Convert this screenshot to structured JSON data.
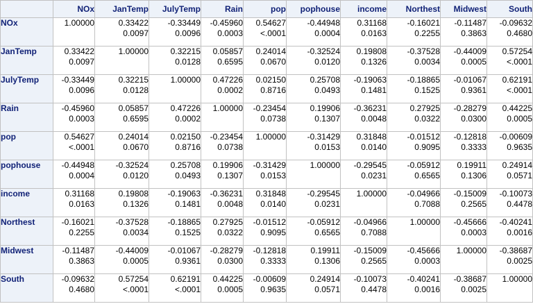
{
  "table": {
    "columns": [
      "NOx",
      "JanTemp",
      "JulyTemp",
      "Rain",
      "pop",
      "pophouse",
      "income",
      "Northest",
      "Midwest",
      "South"
    ],
    "rows": [
      {
        "label": "NOx",
        "cells": [
          [
            "1.00000",
            ""
          ],
          [
            "0.33422",
            "0.0097"
          ],
          [
            "-0.33449",
            "0.0096"
          ],
          [
            "-0.45960",
            "0.0003"
          ],
          [
            "0.54627",
            "<.0001"
          ],
          [
            "-0.44948",
            "0.0004"
          ],
          [
            "0.31168",
            "0.0163"
          ],
          [
            "-0.16021",
            "0.2255"
          ],
          [
            "-0.11487",
            "0.3863"
          ],
          [
            "-0.09632",
            "0.4680"
          ]
        ]
      },
      {
        "label": "JanTemp",
        "cells": [
          [
            "0.33422",
            "0.0097"
          ],
          [
            "1.00000",
            ""
          ],
          [
            "0.32215",
            "0.0128"
          ],
          [
            "0.05857",
            "0.6595"
          ],
          [
            "0.24014",
            "0.0670"
          ],
          [
            "-0.32524",
            "0.0120"
          ],
          [
            "0.19808",
            "0.1326"
          ],
          [
            "-0.37528",
            "0.0034"
          ],
          [
            "-0.44009",
            "0.0005"
          ],
          [
            "0.57254",
            "<.0001"
          ]
        ]
      },
      {
        "label": "JulyTemp",
        "cells": [
          [
            "-0.33449",
            "0.0096"
          ],
          [
            "0.32215",
            "0.0128"
          ],
          [
            "1.00000",
            ""
          ],
          [
            "0.47226",
            "0.0002"
          ],
          [
            "0.02150",
            "0.8716"
          ],
          [
            "0.25708",
            "0.0493"
          ],
          [
            "-0.19063",
            "0.1481"
          ],
          [
            "-0.18865",
            "0.1525"
          ],
          [
            "-0.01067",
            "0.9361"
          ],
          [
            "0.62191",
            "<.0001"
          ]
        ]
      },
      {
        "label": "Rain",
        "cells": [
          [
            "-0.45960",
            "0.0003"
          ],
          [
            "0.05857",
            "0.6595"
          ],
          [
            "0.47226",
            "0.0002"
          ],
          [
            "1.00000",
            ""
          ],
          [
            "-0.23454",
            "0.0738"
          ],
          [
            "0.19906",
            "0.1307"
          ],
          [
            "-0.36231",
            "0.0048"
          ],
          [
            "0.27925",
            "0.0322"
          ],
          [
            "-0.28279",
            "0.0300"
          ],
          [
            "0.44225",
            "0.0005"
          ]
        ]
      },
      {
        "label": "pop",
        "cells": [
          [
            "0.54627",
            "<.0001"
          ],
          [
            "0.24014",
            "0.0670"
          ],
          [
            "0.02150",
            "0.8716"
          ],
          [
            "-0.23454",
            "0.0738"
          ],
          [
            "1.00000",
            ""
          ],
          [
            "-0.31429",
            "0.0153"
          ],
          [
            "0.31848",
            "0.0140"
          ],
          [
            "-0.01512",
            "0.9095"
          ],
          [
            "-0.12818",
            "0.3333"
          ],
          [
            "-0.00609",
            "0.9635"
          ]
        ]
      },
      {
        "label": "pophouse",
        "cells": [
          [
            "-0.44948",
            "0.0004"
          ],
          [
            "-0.32524",
            "0.0120"
          ],
          [
            "0.25708",
            "0.0493"
          ],
          [
            "0.19906",
            "0.1307"
          ],
          [
            "-0.31429",
            "0.0153"
          ],
          [
            "1.00000",
            ""
          ],
          [
            "-0.29545",
            "0.0231"
          ],
          [
            "-0.05912",
            "0.6565"
          ],
          [
            "0.19911",
            "0.1306"
          ],
          [
            "0.24914",
            "0.0571"
          ]
        ]
      },
      {
        "label": "income",
        "cells": [
          [
            "0.31168",
            "0.0163"
          ],
          [
            "0.19808",
            "0.1326"
          ],
          [
            "-0.19063",
            "0.1481"
          ],
          [
            "-0.36231",
            "0.0048"
          ],
          [
            "0.31848",
            "0.0140"
          ],
          [
            "-0.29545",
            "0.0231"
          ],
          [
            "1.00000",
            ""
          ],
          [
            "-0.04966",
            "0.7088"
          ],
          [
            "-0.15009",
            "0.2565"
          ],
          [
            "-0.10073",
            "0.4478"
          ]
        ]
      },
      {
        "label": "Northest",
        "cells": [
          [
            "-0.16021",
            "0.2255"
          ],
          [
            "-0.37528",
            "0.0034"
          ],
          [
            "-0.18865",
            "0.1525"
          ],
          [
            "0.27925",
            "0.0322"
          ],
          [
            "-0.01512",
            "0.9095"
          ],
          [
            "-0.05912",
            "0.6565"
          ],
          [
            "-0.04966",
            "0.7088"
          ],
          [
            "1.00000",
            ""
          ],
          [
            "-0.45666",
            "0.0003"
          ],
          [
            "-0.40241",
            "0.0016"
          ]
        ]
      },
      {
        "label": "Midwest",
        "cells": [
          [
            "-0.11487",
            "0.3863"
          ],
          [
            "-0.44009",
            "0.0005"
          ],
          [
            "-0.01067",
            "0.9361"
          ],
          [
            "-0.28279",
            "0.0300"
          ],
          [
            "-0.12818",
            "0.3333"
          ],
          [
            "0.19911",
            "0.1306"
          ],
          [
            "-0.15009",
            "0.2565"
          ],
          [
            "-0.45666",
            "0.0003"
          ],
          [
            "1.00000",
            ""
          ],
          [
            "-0.38687",
            "0.0025"
          ]
        ]
      },
      {
        "label": "South",
        "cells": [
          [
            "-0.09632",
            "0.4680"
          ],
          [
            "0.57254",
            "<.0001"
          ],
          [
            "0.62191",
            "<.0001"
          ],
          [
            "0.44225",
            "0.0005"
          ],
          [
            "-0.00609",
            "0.9635"
          ],
          [
            "0.24914",
            "0.0571"
          ],
          [
            "-0.10073",
            "0.4478"
          ],
          [
            "-0.40241",
            "0.0016"
          ],
          [
            "-0.38687",
            "0.0025"
          ],
          [
            "1.00000",
            ""
          ]
        ]
      }
    ]
  },
  "colors": {
    "header_background": "#edf2f9",
    "header_text": "#112277",
    "grid": "#c1c1c1"
  }
}
